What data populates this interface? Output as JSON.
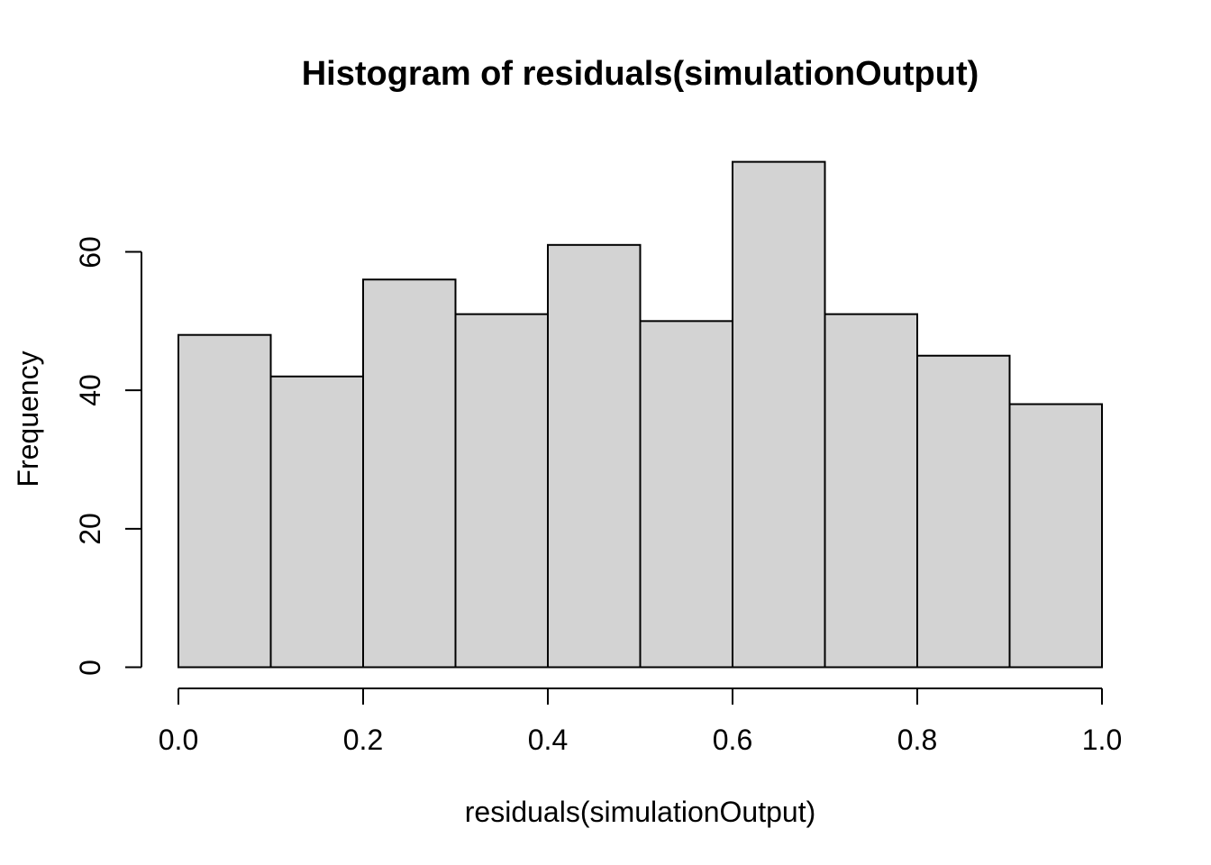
{
  "chart_data": {
    "type": "bar",
    "subtype": "histogram",
    "title": "Histogram of residuals(simulationOutput)",
    "xlabel": "residuals(simulationOutput)",
    "ylabel": "Frequency",
    "bin_edges": [
      0.0,
      0.1,
      0.2,
      0.3,
      0.4,
      0.5,
      0.6,
      0.7,
      0.8,
      0.9,
      1.0
    ],
    "values": [
      48,
      42,
      56,
      51,
      61,
      50,
      73,
      51,
      45,
      38
    ],
    "x_ticks": [
      0.0,
      0.2,
      0.4,
      0.6,
      0.8,
      1.0
    ],
    "x_tick_labels": [
      "0.0",
      "0.2",
      "0.4",
      "0.6",
      "0.8",
      "1.0"
    ],
    "y_ticks": [
      0,
      20,
      40,
      60
    ],
    "y_tick_labels": [
      "0",
      "20",
      "40",
      "60"
    ],
    "xlim": [
      0.0,
      1.0
    ],
    "ylim": [
      0,
      73
    ],
    "grid": false,
    "legend": null,
    "colors": {
      "bar_fill": "#d3d3d3",
      "bar_stroke": "#000000",
      "axis": "#000000",
      "text": "#000000",
      "background": "#ffffff"
    }
  }
}
